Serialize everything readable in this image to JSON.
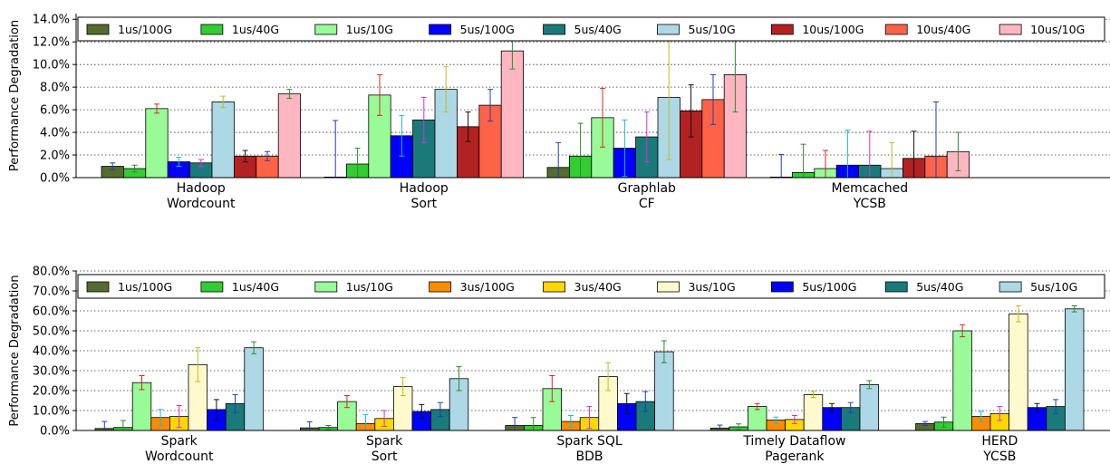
{
  "chart_data": [
    {
      "type": "bar",
      "ylabel": "Performance Degradation",
      "ylim": [
        0,
        14.5
      ],
      "yticks": [
        0,
        2,
        4,
        6,
        8,
        10,
        12,
        14
      ],
      "ytick_labels": [
        "0.0%",
        "2.0%",
        "4.0%",
        "6.0%",
        "8.0%",
        "10.0%",
        "12.0%",
        "14.0%"
      ],
      "grid": "horizontal dotted",
      "legend_position": "top",
      "categories": [
        [
          "Hadoop",
          "Wordcount"
        ],
        [
          "Hadoop",
          "Sort"
        ],
        [
          "Graphlab",
          "CF"
        ],
        [
          "Memcached",
          "YCSB"
        ]
      ],
      "series": [
        {
          "name": "1us/100G",
          "color": "#556b2f",
          "err_color": "#1f3dbf",
          "values": [
            1.0,
            0.05,
            0.9,
            0.05
          ],
          "err": [
            0.3,
            5.0,
            2.2,
            2.0
          ]
        },
        {
          "name": "1us/40G",
          "color": "#32cd32",
          "err_color": "#2e8b2e",
          "values": [
            0.8,
            1.2,
            1.9,
            0.45
          ],
          "err": [
            0.3,
            1.4,
            2.9,
            2.5
          ]
        },
        {
          "name": "1us/10G",
          "color": "#98fb98",
          "err_color": "#d62728",
          "values": [
            6.1,
            7.3,
            5.3,
            0.8
          ],
          "err": [
            0.4,
            1.8,
            2.6,
            1.6
          ]
        },
        {
          "name": "5us/100G",
          "color": "#0000ff",
          "err_color": "#17becf",
          "values": [
            1.4,
            3.7,
            2.6,
            1.1
          ],
          "err": [
            0.4,
            1.8,
            2.5,
            3.1
          ]
        },
        {
          "name": "5us/40G",
          "color": "#1a7a7a",
          "err_color": "#d62fd6",
          "values": [
            1.3,
            5.1,
            3.6,
            1.1
          ],
          "err": [
            0.3,
            2.0,
            2.2,
            3.0
          ]
        },
        {
          "name": "5us/10G",
          "color": "#add8e6",
          "err_color": "#bcbd22",
          "values": [
            6.7,
            7.8,
            7.1,
            0.8
          ],
          "err": [
            0.5,
            2.0,
            5.5,
            2.3
          ]
        },
        {
          "name": "10us/100G",
          "color": "#b22222",
          "err_color": "#111111",
          "values": [
            1.9,
            4.5,
            5.9,
            1.7
          ],
          "err": [
            0.5,
            1.3,
            2.3,
            2.4
          ]
        },
        {
          "name": "10us/40G",
          "color": "#ff6347",
          "err_color": "#1f3dbf",
          "values": [
            1.9,
            6.4,
            6.9,
            1.9
          ],
          "err": [
            0.4,
            1.4,
            2.2,
            4.8
          ]
        },
        {
          "name": "10us/10G",
          "color": "#ffb6c1",
          "err_color": "#2e8b2e",
          "values": [
            7.4,
            11.2,
            9.1,
            2.3
          ],
          "err": [
            0.4,
            1.6,
            3.3,
            1.7
          ]
        }
      ]
    },
    {
      "type": "bar",
      "ylabel": "Performance Degradation",
      "ylim": [
        0,
        80
      ],
      "yticks": [
        0,
        10,
        20,
        30,
        40,
        50,
        60,
        70,
        80
      ],
      "ytick_labels": [
        "0.0%",
        "10.0%",
        "20.0%",
        "30.0%",
        "40.0%",
        "50.0%",
        "60.0%",
        "70.0%",
        "80.0%"
      ],
      "grid": "horizontal dotted",
      "legend_position": "top",
      "categories": [
        [
          "Spark",
          "Wordcount"
        ],
        [
          "Spark",
          "Sort"
        ],
        [
          "Spark SQL",
          "BDB"
        ],
        [
          "Timely Dataflow",
          "Pagerank"
        ],
        [
          "HERD",
          "YCSB"
        ]
      ],
      "series": [
        {
          "name": "1us/100G",
          "color": "#556b2f",
          "err_color": "#1f3dbf",
          "values": [
            1.0,
            1.3,
            2.5,
            1.2,
            3.5
          ],
          "err": [
            3.5,
            3.0,
            4.0,
            1.5,
            1.0
          ]
        },
        {
          "name": "1us/40G",
          "color": "#32cd32",
          "err_color": "#2e8b2e",
          "values": [
            1.5,
            1.5,
            2.5,
            1.8,
            4.2
          ],
          "err": [
            3.5,
            1.0,
            4.0,
            1.5,
            2.5
          ]
        },
        {
          "name": "1us/10G",
          "color": "#98fb98",
          "err_color": "#d62728",
          "values": [
            24.0,
            14.5,
            21.0,
            12.0,
            50.0
          ],
          "err": [
            3.5,
            3.0,
            6.5,
            1.5,
            3.0
          ]
        },
        {
          "name": "3us/100G",
          "color": "#ff8c00",
          "err_color": "#17becf",
          "values": [
            6.5,
            3.5,
            4.5,
            5.2,
            7.0
          ],
          "err": [
            4.0,
            4.5,
            3.0,
            1.5,
            2.5
          ]
        },
        {
          "name": "3us/40G",
          "color": "#ffd700",
          "err_color": "#d62fd6",
          "values": [
            7.0,
            6.0,
            6.5,
            5.5,
            8.5
          ],
          "err": [
            5.5,
            4.0,
            5.5,
            2.0,
            3.5
          ]
        },
        {
          "name": "3us/10G",
          "color": "#fffacd",
          "err_color": "#bcbd22",
          "values": [
            33.0,
            22.0,
            27.0,
            18.0,
            58.5
          ],
          "err": [
            8.5,
            4.5,
            7.0,
            1.5,
            4.0
          ]
        },
        {
          "name": "5us/100G",
          "color": "#0000ff",
          "err_color": "#111111",
          "values": [
            10.5,
            9.5,
            13.5,
            11.5,
            11.5
          ],
          "err": [
            5.0,
            3.5,
            5.0,
            2.0,
            2.0
          ]
        },
        {
          "name": "5us/40G",
          "color": "#1a7a7a",
          "err_color": "#1f3dbf",
          "values": [
            13.5,
            10.5,
            14.5,
            11.5,
            12.0
          ],
          "err": [
            4.5,
            3.5,
            5.0,
            2.5,
            3.5
          ]
        },
        {
          "name": "5us/10G",
          "color": "#add8e6",
          "err_color": "#2e8b2e",
          "values": [
            41.5,
            26.0,
            39.5,
            23.0,
            61.0
          ],
          "err": [
            3.0,
            6.0,
            5.5,
            2.0,
            1.5
          ]
        }
      ]
    }
  ]
}
